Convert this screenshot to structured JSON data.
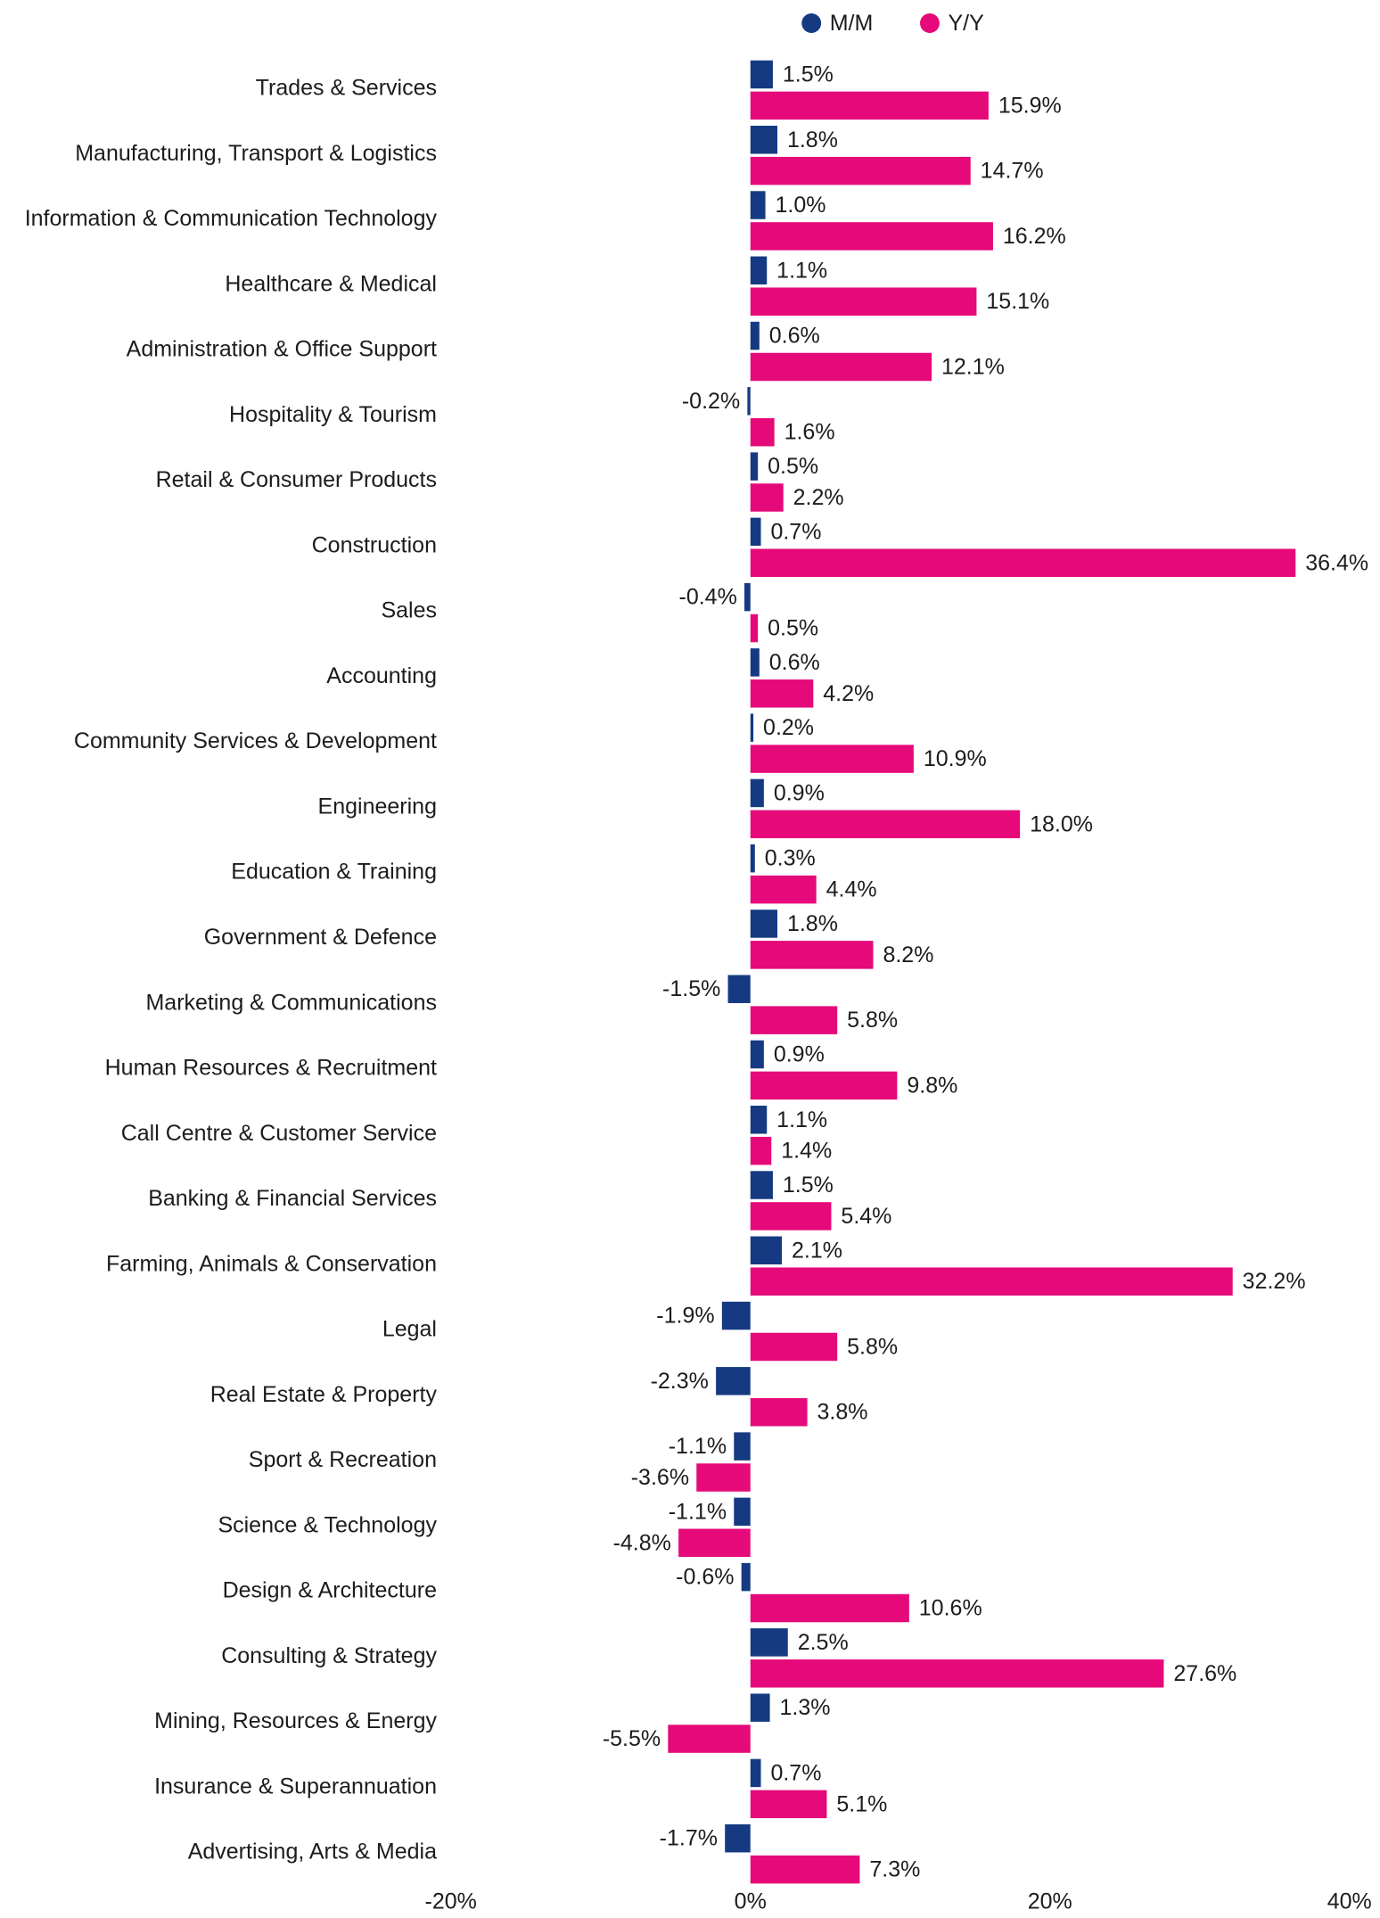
{
  "colors": {
    "mm": "#163a82",
    "yy": "#e5097a",
    "text": "#1c1c1c"
  },
  "chart_data": {
    "type": "bar",
    "orientation": "horizontal",
    "categories": [
      "Trades & Services",
      "Manufacturing, Transport & Logistics",
      "Information & Communication Technology",
      "Healthcare & Medical",
      "Administration & Office Support",
      "Hospitality & Tourism",
      "Retail & Consumer Products",
      "Construction",
      "Sales",
      "Accounting",
      "Community Services & Development",
      "Engineering",
      "Education & Training",
      "Government & Defence",
      "Marketing & Communications",
      "Human Resources & Recruitment",
      "Call Centre & Customer Service",
      "Banking & Financial Services",
      "Farming, Animals & Conservation",
      "Legal",
      "Real Estate & Property",
      "Sport & Recreation",
      "Science & Technology",
      "Design & Architecture",
      "Consulting & Strategy",
      "Mining, Resources & Energy",
      "Insurance & Superannuation",
      "Advertising, Arts & Media"
    ],
    "series": [
      {
        "name": "M/M",
        "color": "#163a82",
        "values": [
          1.5,
          1.8,
          1.0,
          1.1,
          0.6,
          -0.2,
          0.5,
          0.7,
          -0.4,
          0.6,
          0.2,
          0.9,
          0.3,
          1.8,
          -1.5,
          0.9,
          1.1,
          1.5,
          2.1,
          -1.9,
          -2.3,
          -1.1,
          -1.1,
          -0.6,
          2.5,
          1.3,
          0.7,
          -1.7
        ],
        "labels": [
          "1.5%",
          "1.8%",
          "1.0%",
          "1.1%",
          "0.6%",
          "-0.2%",
          "0.5%",
          "0.7%",
          "-0.4%",
          "0.6%",
          "0.2%",
          "0.9%",
          "0.3%",
          "1.8%",
          "-1.5%",
          "0.9%",
          "1.1%",
          "1.5%",
          "2.1%",
          "-1.9%",
          "-2.3%",
          "-1.1%",
          "-1.1%",
          "-0.6%",
          "2.5%",
          "1.3%",
          "0.7%",
          "-1.7%"
        ]
      },
      {
        "name": "Y/Y",
        "color": "#e5097a",
        "values": [
          15.9,
          14.7,
          16.2,
          15.1,
          12.1,
          1.6,
          2.2,
          36.4,
          0.5,
          4.2,
          10.9,
          18.0,
          4.4,
          8.2,
          5.8,
          9.8,
          1.4,
          5.4,
          32.2,
          5.8,
          3.8,
          -3.6,
          -4.8,
          10.6,
          27.6,
          -5.5,
          5.1,
          7.3
        ],
        "labels": [
          "15.9%",
          "14.7%",
          "16.2%",
          "15.1%",
          "12.1%",
          "1.6%",
          "2.2%",
          "36.4%",
          "0.5%",
          "4.2%",
          "10.9%",
          "18.0%",
          "4.4%",
          "8.2%",
          "5.8%",
          "9.8%",
          "1.4%",
          "5.4%",
          "32.2%",
          "5.8%",
          "3.8%",
          "-3.6%",
          "-4.8%",
          "10.6%",
          "27.6%",
          "-5.5%",
          "5.1%",
          "7.3%"
        ]
      }
    ],
    "xlim": [
      -20,
      40
    ],
    "xticks": [
      -20,
      0,
      20,
      40
    ],
    "xtick_labels": [
      "-20%",
      "0%",
      "20%",
      "40%"
    ],
    "legend_position": "top",
    "grid": false
  }
}
